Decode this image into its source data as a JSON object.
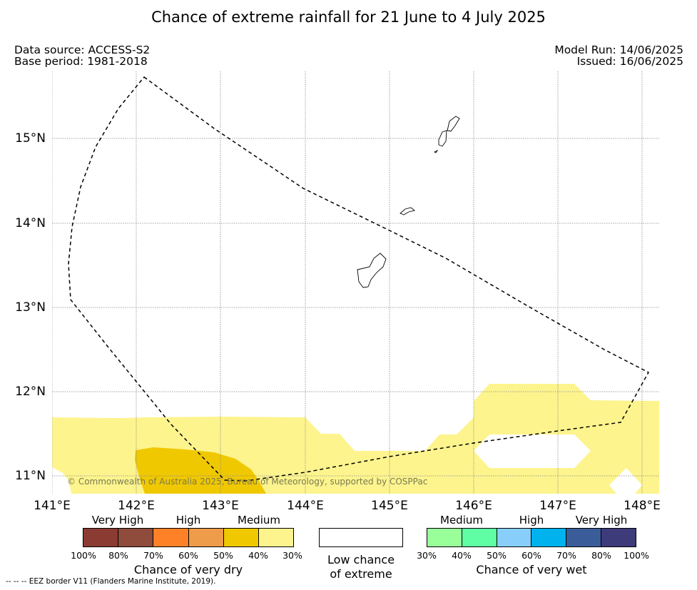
{
  "title": "Chance of extreme rainfall for 21 June to 4 July 2025",
  "data_source": "Data source: ACCESS-S2",
  "base_period": "Base period: 1981-2018",
  "model_run": "Model Run: 14/06/2025",
  "issued": "Issued: 16/06/2025",
  "map": {
    "lat_labels": [
      "15°N",
      "14°N",
      "13°N",
      "12°N",
      "11°N"
    ],
    "lon_labels": [
      "141°E",
      "142°E",
      "143°E",
      "144°E",
      "145°E",
      "146°E",
      "147°E",
      "148°E"
    ],
    "copyright": "© Commonwealth of Australia 2025, Bureau of Meteorology, supported by COSPPac",
    "colors": {
      "medium_dry_30_40": "#fdf48e",
      "medium_dry_40_50": "#f0c800",
      "eez_border": "#000000",
      "land": "#ffffff"
    }
  },
  "legend": {
    "dry": {
      "categories": [
        "Very High",
        "High",
        "Medium"
      ],
      "colors": [
        "#8c3b33",
        "#8f4b3b",
        "#ff8127",
        "#ee9c4a",
        "#f0c800",
        "#fdf48e"
      ],
      "ticks": [
        "100%",
        "80%",
        "70%",
        "60%",
        "50%",
        "40%",
        "30%"
      ],
      "title": "Chance of very dry"
    },
    "low": {
      "line1": "Low chance",
      "line2": "of extreme"
    },
    "wet": {
      "categories": [
        "Medium",
        "High",
        "Very High"
      ],
      "colors": [
        "#99ff99",
        "#5ffda4",
        "#87cefb",
        "#00b3ef",
        "#3a5d9a",
        "#3d3b7a"
      ],
      "ticks": [
        "30%",
        "40%",
        "50%",
        "60%",
        "70%",
        "80%",
        "100%"
      ],
      "title": "Chance of very wet"
    }
  },
  "footer": "--  --  -- EEZ border V11 (Flanders Marine Institute, 2019)."
}
